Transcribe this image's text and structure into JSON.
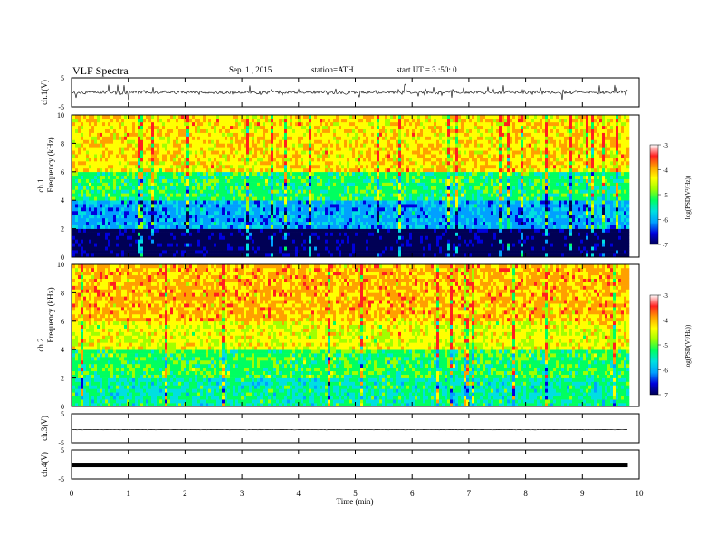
{
  "header": {
    "title": "VLF Spectra",
    "date": "Sep. 1 , 2015",
    "station": "station=ATH",
    "start": "start UT = 3 :50: 0"
  },
  "colors": {
    "spectrogram_scale": [
      "#000055",
      "#0000dd",
      "#00a0ff",
      "#00e0e0",
      "#00ff60",
      "#a0ff00",
      "#ffff00",
      "#ffa000",
      "#ff2020",
      "#ffffff"
    ]
  },
  "chart_data": [
    {
      "type": "line",
      "panel": "ch.1 waveform",
      "ylabel": "ch.1(V)",
      "ylim": [
        -5,
        5
      ],
      "y_ticks": [
        "5",
        "-5"
      ],
      "description_values": {
        "mean": 0,
        "typical_amplitude": 1.0
      }
    },
    {
      "type": "heatmap",
      "panel": "ch.1 spectrogram",
      "ylabel_channel": "ch.1",
      "ylabel": "Frequency (kHz)",
      "ylim": [
        0,
        10
      ],
      "y_ticks": [
        "0",
        "2",
        "4",
        "6",
        "8",
        "10"
      ],
      "colorbar": {
        "label": "log(PSD(V²/Hz))",
        "range": [
          -7,
          -3
        ],
        "ticks": [
          "-3",
          "-4",
          "-5",
          "-6",
          "-7"
        ]
      },
      "bands_khz": [
        {
          "from": 0,
          "to": 2,
          "level": -6.8
        },
        {
          "from": 2,
          "to": 4,
          "level": -5.8
        },
        {
          "from": 4,
          "to": 6,
          "level": -5.0
        },
        {
          "from": 6,
          "to": 10,
          "level": -4.0
        }
      ]
    },
    {
      "type": "heatmap",
      "panel": "ch.2 spectrogram",
      "ylabel_channel": "ch.2",
      "ylabel": "Frequency (kHz)",
      "ylim": [
        0,
        10
      ],
      "y_ticks": [
        "0",
        "2",
        "4",
        "6",
        "8",
        "10"
      ],
      "colorbar": {
        "label": "log(PSD(V²/Hz))",
        "range": [
          -7,
          -3
        ],
        "ticks": [
          "-3",
          "-4",
          "-5",
          "-6",
          "-7"
        ]
      },
      "bands_khz": [
        {
          "from": 0,
          "to": 2,
          "level": -5.2
        },
        {
          "from": 2,
          "to": 4,
          "level": -4.9
        },
        {
          "from": 4,
          "to": 6,
          "level": -4.2
        },
        {
          "from": 6,
          "to": 10,
          "level": -3.8
        }
      ]
    },
    {
      "type": "line",
      "panel": "ch.3 waveform",
      "ylabel": "ch.3(V)",
      "ylim": [
        -5,
        5
      ],
      "y_ticks": [
        "5",
        "-5"
      ],
      "description_values": {
        "mean": -0.5,
        "typical_amplitude": 0.1
      }
    },
    {
      "type": "line",
      "panel": "ch.4 waveform",
      "ylabel": "ch.4(V)",
      "ylim": [
        -5,
        5
      ],
      "y_ticks": [
        "5",
        "-5"
      ],
      "description_values": {
        "mean": 0,
        "typical_amplitude": 0.15
      }
    }
  ],
  "x_axis": {
    "label": "Time (min)",
    "range": [
      0,
      10
    ],
    "data_end": 9.8,
    "ticks": [
      "0",
      "1",
      "2",
      "3",
      "4",
      "5",
      "6",
      "7",
      "8",
      "9",
      "10"
    ]
  }
}
